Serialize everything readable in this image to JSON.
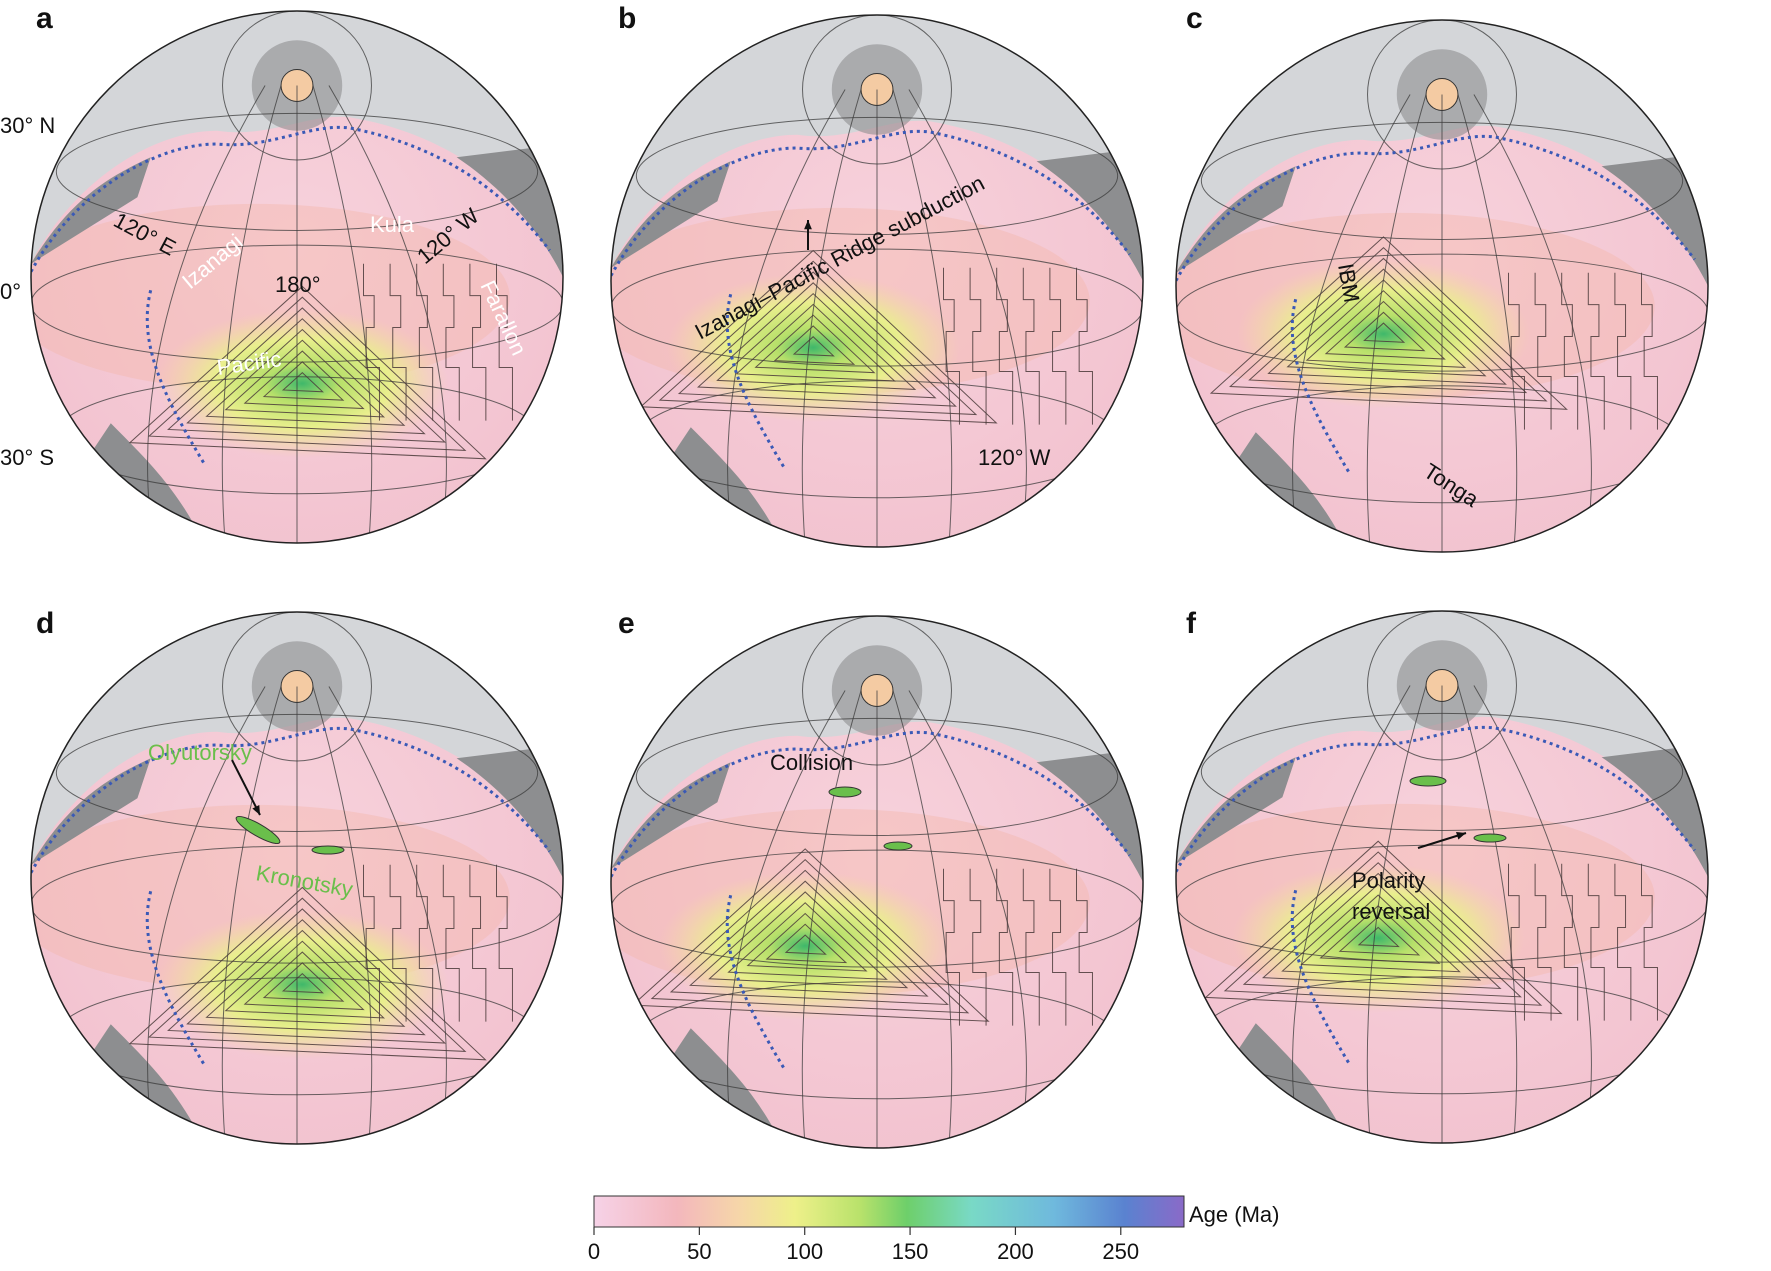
{
  "panels": [
    {
      "id": "a",
      "letter": "a",
      "side_labels": {
        "lat_30n": "30° N",
        "lat_0": "0°",
        "lat_30s": "30° S"
      },
      "annotations": {
        "e120": "120° E",
        "izanagi": "Izanagi",
        "kula": "Kula",
        "w120": "120° W",
        "deg180": "180°",
        "farallon": "Farallon",
        "pacific": "Pacific"
      }
    },
    {
      "id": "b",
      "letter": "b",
      "annotations": {
        "ridge": "Izanagi–Pacific Ridge subduction",
        "w120": "120° W"
      }
    },
    {
      "id": "c",
      "letter": "c",
      "annotations": {
        "ibm": "IBM",
        "tonga": "Tonga"
      }
    },
    {
      "id": "d",
      "letter": "d",
      "annotations": {
        "olyutorsky": "Olyutorsky",
        "kronotsky": "Kronotsky"
      }
    },
    {
      "id": "e",
      "letter": "e",
      "annotations": {
        "collision": "Collision"
      }
    },
    {
      "id": "f",
      "letter": "f",
      "annotations": {
        "polarity1": "Polarity",
        "polarity2": "reversal"
      }
    }
  ],
  "colorbar": {
    "label": "Age (Ma)",
    "ticks": [
      "0",
      "50",
      "100",
      "150",
      "200",
      "250"
    ],
    "range": [
      0,
      280
    ],
    "stops": [
      "#f6d2e7",
      "#f3b7bd",
      "#f6d7a8",
      "#eef08a",
      "#b9e26b",
      "#6ecf6a",
      "#79d9c6",
      "#6fb9dd",
      "#5a82d0",
      "#8a6ac8"
    ]
  },
  "colors": {
    "land_light": "#d4d6d9",
    "land_dark": "#8d8e90",
    "ocean_young": "#f5c9d6",
    "ocean_mid": "#f5b8ae",
    "ocean_old": "#d9ec84",
    "trench": "#3a59b6",
    "microcontinent": "#6abf4b"
  }
}
